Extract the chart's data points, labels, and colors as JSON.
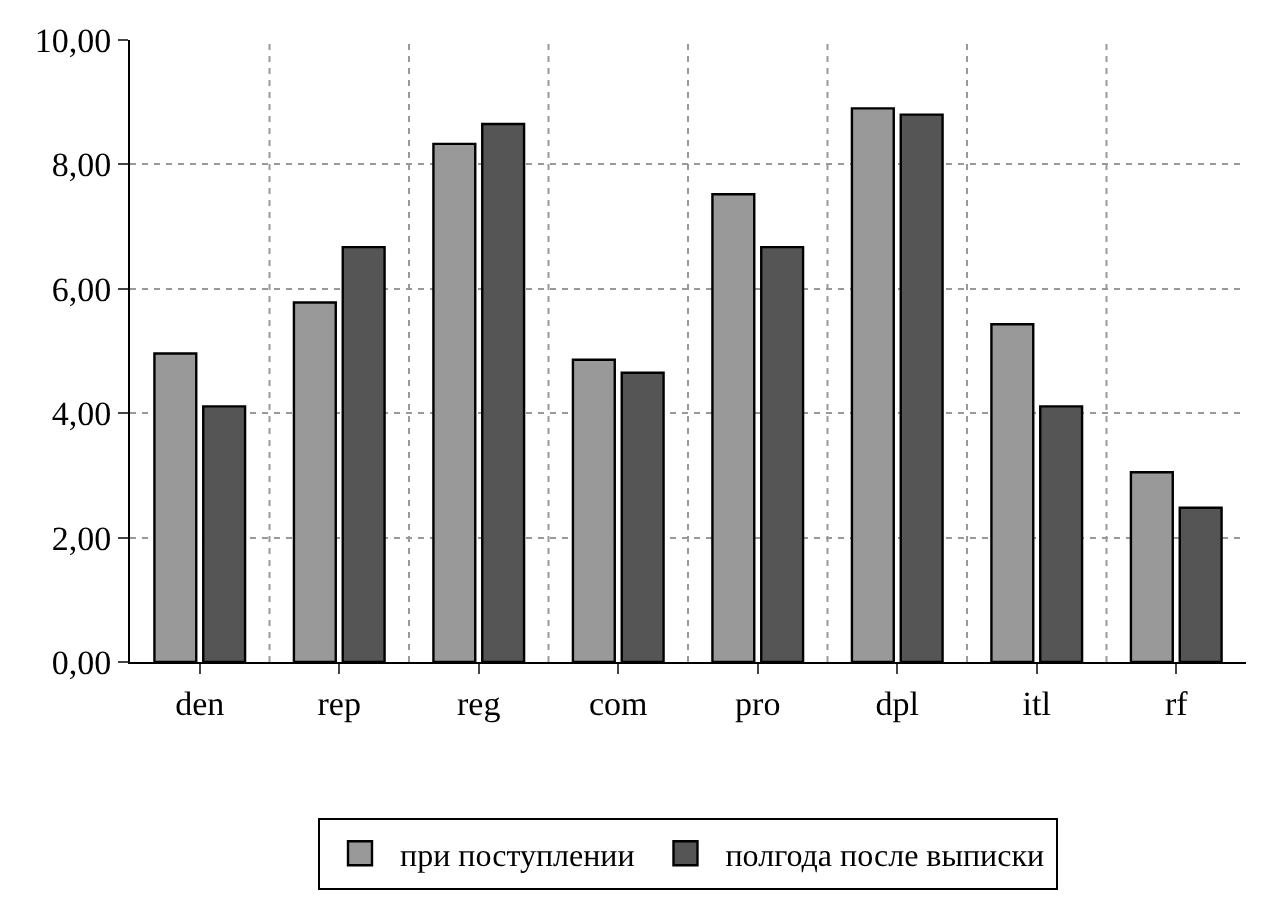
{
  "chart_data": {
    "type": "bar",
    "categories": [
      "den",
      "rep",
      "reg",
      "com",
      "pro",
      "dpl",
      "itl",
      "rf"
    ],
    "series": [
      {
        "name": "при поступлении",
        "color": "#999999",
        "values": [
          4.96,
          5.78,
          8.33,
          4.86,
          7.52,
          8.9,
          5.43,
          3.05
        ]
      },
      {
        "name": "полгода после выписки",
        "color": "#555555",
        "values": [
          4.11,
          6.67,
          8.65,
          4.65,
          6.67,
          8.8,
          4.11,
          2.48
        ]
      }
    ],
    "ylim": [
      0,
      10
    ],
    "yticks": [
      {
        "value": 0,
        "label": "0,00"
      },
      {
        "value": 2,
        "label": "2,00"
      },
      {
        "value": 4,
        "label": "4,00"
      },
      {
        "value": 6,
        "label": "6,00"
      },
      {
        "value": 8,
        "label": "8,00"
      },
      {
        "value": 10,
        "label": "10,00"
      }
    ],
    "grid": true,
    "legend": "bottom"
  }
}
